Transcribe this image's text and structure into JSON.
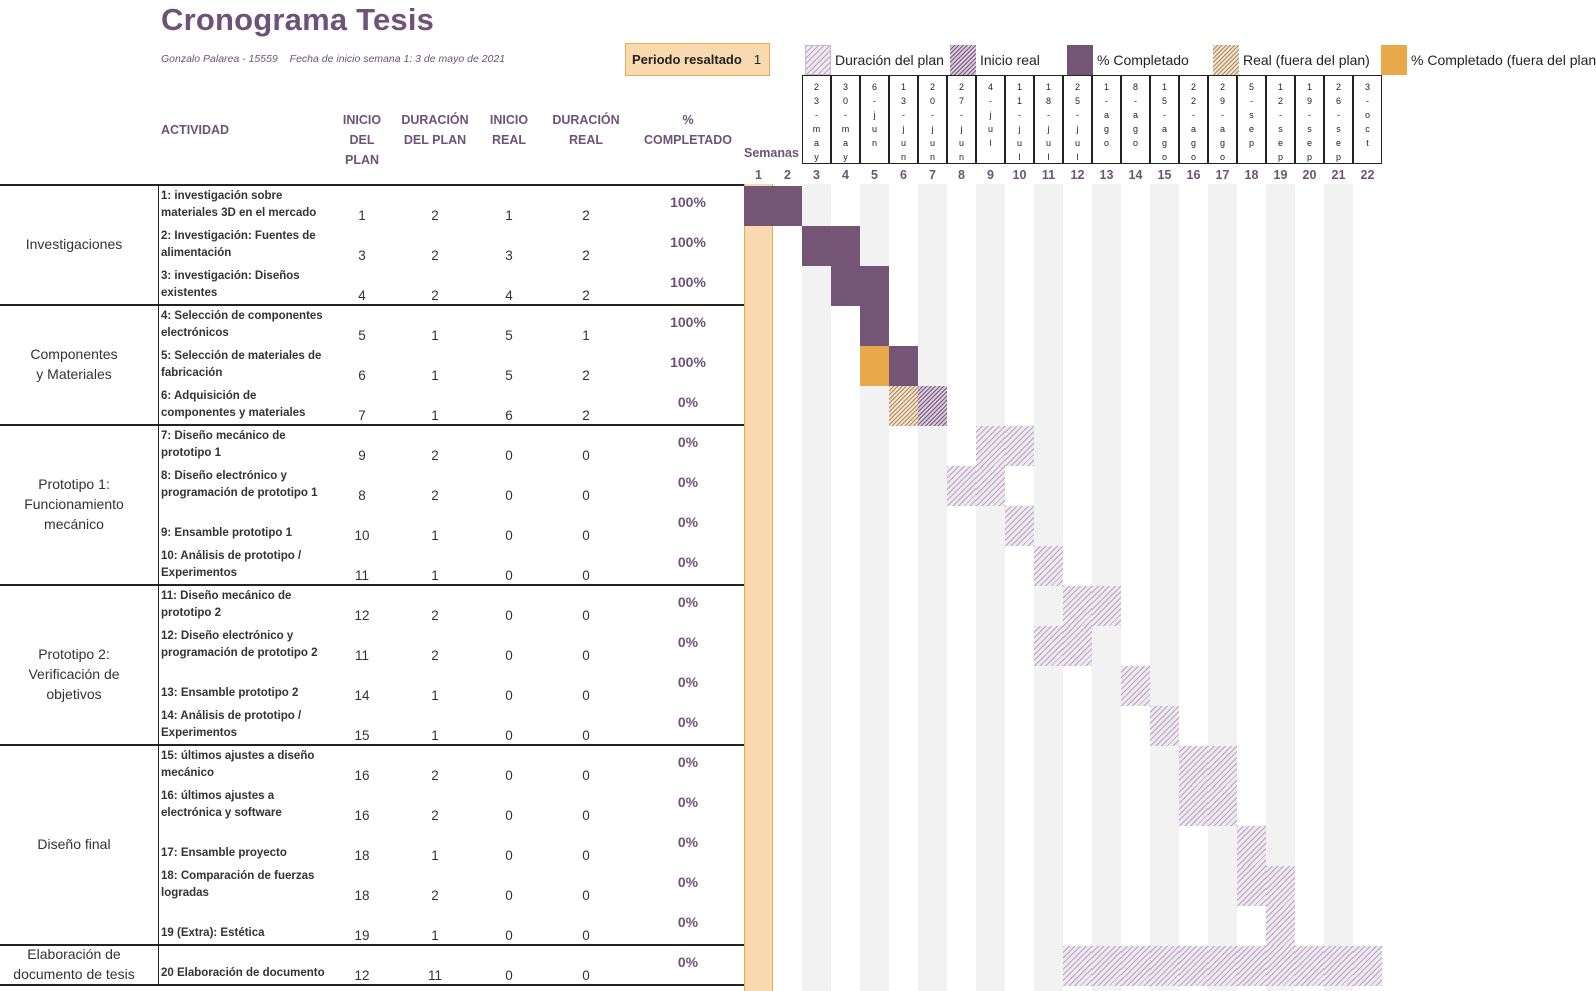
{
  "header": {
    "title": "Cronograma Tesis",
    "author": "Gonzalo Palarea - 15559",
    "start_date": "Fecha de inicio semana 1: 3 de mayo de 2021",
    "period_label": "Periodo resaltado",
    "period_value": "1"
  },
  "legend": {
    "plan": "Duración del plan",
    "real": "Inicio real",
    "complete": "% Completado",
    "outside": "Real (fuera del plan)",
    "outcomplete": "% Completado (fuera del plan)"
  },
  "columns": {
    "activity": "ACTIVIDAD",
    "plan_start": [
      "INICIO",
      "DEL PLAN"
    ],
    "plan_duration": [
      "DURACIÓN",
      "DEL PLAN"
    ],
    "real_start": [
      "INICIO",
      "REAL"
    ],
    "real_duration": [
      "DURACIÓN",
      "REAL"
    ],
    "percent": [
      "%",
      "COMPLETADO"
    ],
    "weeks": "Semanas"
  },
  "dates": [
    [
      "2",
      "3",
      "-",
      "m",
      "a",
      "y"
    ],
    [
      "3",
      "0",
      "-",
      "m",
      "a",
      "y"
    ],
    [
      "6",
      "-",
      "j",
      "u",
      "n"
    ],
    [
      "1",
      "3",
      "-",
      "j",
      "u",
      "n"
    ],
    [
      "2",
      "0",
      "-",
      "j",
      "u",
      "n"
    ],
    [
      "2",
      "7",
      "-",
      "j",
      "u",
      "n"
    ],
    [
      "4",
      "-",
      "j",
      "u",
      "l"
    ],
    [
      "1",
      "1",
      "-",
      "j",
      "u",
      "l"
    ],
    [
      "1",
      "8",
      "-",
      "j",
      "u",
      "l"
    ],
    [
      "2",
      "5",
      "-",
      "j",
      "u",
      "l"
    ],
    [
      "1",
      "-",
      "a",
      "g",
      "o"
    ],
    [
      "8",
      "-",
      "a",
      "g",
      "o"
    ],
    [
      "1",
      "5",
      "-",
      "a",
      "g",
      "o"
    ],
    [
      "2",
      "2",
      "-",
      "a",
      "g",
      "o"
    ],
    [
      "2",
      "9",
      "-",
      "a",
      "g",
      "o"
    ],
    [
      "5",
      "-",
      "s",
      "e",
      "p"
    ],
    [
      "1",
      "2",
      "-",
      "s",
      "e",
      "p"
    ],
    [
      "1",
      "9",
      "-",
      "s",
      "e",
      "p"
    ],
    [
      "2",
      "6",
      "-",
      "s",
      "e",
      "p"
    ],
    [
      "3",
      "-",
      "o",
      "c",
      "t"
    ]
  ],
  "weeks": [
    "1",
    "2",
    "3",
    "4",
    "5",
    "6",
    "7",
    "8",
    "9",
    "10",
    "11",
    "12",
    "13",
    "14",
    "15",
    "16",
    "17",
    "18",
    "19",
    "20",
    "21",
    "22"
  ],
  "sections": [
    {
      "label": [
        "Investigaciones"
      ]
    },
    {
      "label": [
        "Componentes",
        "y Materiales"
      ]
    },
    {
      "label": [
        "Prototipo 1:",
        "Funcionamiento",
        "mecánico"
      ]
    },
    {
      "label": [
        "Prototipo 2:",
        "Verificación de objetivos"
      ]
    },
    {
      "label": [
        "Diseño final"
      ]
    },
    {
      "label": [
        "Elaboración de",
        "documento de tesis"
      ]
    }
  ],
  "activities": [
    {
      "name": [
        "1: investigación sobre",
        "materiales 3D en el mercado"
      ],
      "ps": 1,
      "pd": 2,
      "rs": 1,
      "rd": 2,
      "pct": "100%",
      "complete": 1
    },
    {
      "name": [
        "2: Investigación: Fuentes de",
        "alimentación"
      ],
      "ps": 3,
      "pd": 2,
      "rs": 3,
      "rd": 2,
      "pct": "100%",
      "complete": 1
    },
    {
      "name": [
        "3: investigación: Diseños",
        "existentes"
      ],
      "ps": 4,
      "pd": 2,
      "rs": 4,
      "rd": 2,
      "pct": "100%",
      "complete": 1
    },
    {
      "name": [
        "4: Selección de componentes",
        "electrónicos"
      ],
      "ps": 5,
      "pd": 1,
      "rs": 5,
      "rd": 1,
      "pct": "100%",
      "complete": 1
    },
    {
      "name": [
        "5: Selección de materiales de",
        "fabricación"
      ],
      "ps": 6,
      "pd": 1,
      "rs": 5,
      "rd": 2,
      "pct": "100%",
      "complete": 1
    },
    {
      "name": [
        "6: Adquisición de",
        "componentes y materiales"
      ],
      "ps": 7,
      "pd": 1,
      "rs": 6,
      "rd": 2,
      "pct": "0%",
      "complete": 0
    },
    {
      "name": [
        "7: Diseño mecánico de",
        "prototipo 1"
      ],
      "ps": 9,
      "pd": 2,
      "rs": 0,
      "rd": 0,
      "pct": "0%",
      "complete": 0
    },
    {
      "name": [
        "8: Diseño electrónico y",
        "programación de prototipo 1"
      ],
      "ps": 8,
      "pd": 2,
      "rs": 0,
      "rd": 0,
      "pct": "0%",
      "complete": 0
    },
    {
      "name": [
        "",
        "9: Ensamble prototipo 1"
      ],
      "ps": 10,
      "pd": 1,
      "rs": 0,
      "rd": 0,
      "pct": "0%",
      "complete": 0
    },
    {
      "name": [
        "10: Análisis de prototipo /",
        "Experimentos"
      ],
      "ps": 11,
      "pd": 1,
      "rs": 0,
      "rd": 0,
      "pct": "0%",
      "complete": 0
    },
    {
      "name": [
        "11: Diseño mecánico de",
        "prototipo 2"
      ],
      "ps": 12,
      "pd": 2,
      "rs": 0,
      "rd": 0,
      "pct": "0%",
      "complete": 0
    },
    {
      "name": [
        "12: Diseño electrónico y",
        "programación de prototipo 2"
      ],
      "ps": 11,
      "pd": 2,
      "rs": 0,
      "rd": 0,
      "pct": "0%",
      "complete": 0
    },
    {
      "name": [
        "",
        "13: Ensamble prototipo 2"
      ],
      "ps": 14,
      "pd": 1,
      "rs": 0,
      "rd": 0,
      "pct": "0%",
      "complete": 0
    },
    {
      "name": [
        "14: Análisis de prototipo /",
        "Experimentos"
      ],
      "ps": 15,
      "pd": 1,
      "rs": 0,
      "rd": 0,
      "pct": "0%",
      "complete": 0
    },
    {
      "name": [
        "15: últimos ajustes a diseño",
        "mecánico"
      ],
      "ps": 16,
      "pd": 2,
      "rs": 0,
      "rd": 0,
      "pct": "0%",
      "complete": 0
    },
    {
      "name": [
        "16: últimos ajustes a",
        "electrónica y software"
      ],
      "ps": 16,
      "pd": 2,
      "rs": 0,
      "rd": 0,
      "pct": "0%",
      "complete": 0
    },
    {
      "name": [
        "",
        "17: Ensamble proyecto"
      ],
      "ps": 18,
      "pd": 1,
      "rs": 0,
      "rd": 0,
      "pct": "0%",
      "complete": 0
    },
    {
      "name": [
        "18: Comparación de fuerzas",
        "logradas"
      ],
      "ps": 18,
      "pd": 2,
      "rs": 0,
      "rd": 0,
      "pct": "0%",
      "complete": 0
    },
    {
      "name": [
        "",
        "19 (Extra): Estética"
      ],
      "ps": 19,
      "pd": 1,
      "rs": 0,
      "rd": 0,
      "pct": "0%",
      "complete": 0
    },
    {
      "name": [
        "",
        "20 Elaboración de documento"
      ],
      "ps": 12,
      "pd": 11,
      "rs": 0,
      "rd": 0,
      "pct": "0%",
      "complete": 0
    }
  ],
  "colors": {
    "accent": "#6f5277",
    "complete": "#745575",
    "out_complete": "#e9a94a",
    "highlight": "#f8d9b0"
  }
}
